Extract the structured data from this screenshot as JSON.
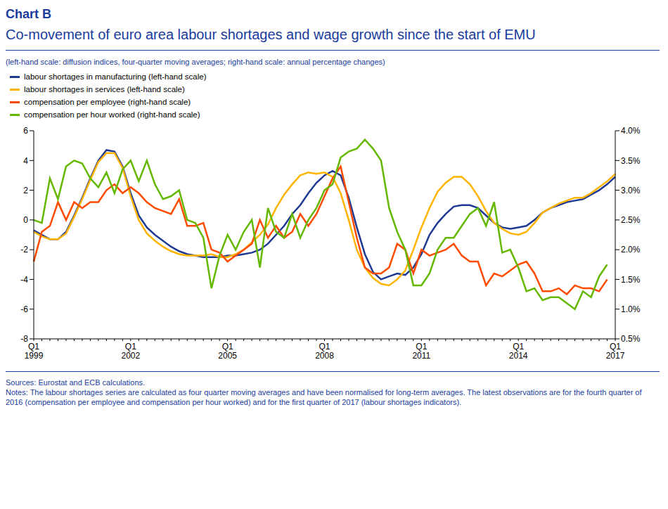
{
  "chart_data": {
    "type": "line",
    "title": "Chart B",
    "subtitle": "Co-movement of euro area labour shortages and wage growth since the start of EMU",
    "units_note": "(left-hand scale: diffusion indices, four-quarter moving averages; right-hand scale: annual percentage changes)",
    "sources": "Sources: Eurostat and ECB calculations.",
    "notes": "Notes: The labour shortages series are calculated as four quarter moving averages and have been normalised for long-term averages. The latest observations are for the fourth quarter of 2016 (compensation per employee and compensation per hour worked) and for the first quarter of 2017 (labour shortages indicators).",
    "grid": false,
    "categories": [
      "Q1 1999",
      null,
      null,
      null,
      null,
      null,
      null,
      null,
      null,
      null,
      null,
      null,
      "Q1 2002",
      null,
      null,
      null,
      null,
      null,
      null,
      null,
      null,
      null,
      null,
      null,
      "Q1 2005",
      null,
      null,
      null,
      null,
      null,
      null,
      null,
      null,
      null,
      null,
      null,
      "Q1 2008",
      null,
      null,
      null,
      null,
      null,
      null,
      null,
      null,
      null,
      null,
      null,
      "Q1 2011",
      null,
      null,
      null,
      null,
      null,
      null,
      null,
      null,
      null,
      null,
      null,
      "Q1 2014",
      null,
      null,
      null,
      null,
      null,
      null,
      null,
      null,
      null,
      null,
      null,
      "Q1 2017"
    ],
    "ylim": [
      -8,
      6
    ],
    "yticks": [
      -8,
      -6,
      -4,
      -2,
      0,
      2,
      4,
      6
    ],
    "y2lim": [
      0.5,
      4.0
    ],
    "y2ticks": [
      {
        "value": 0.5,
        "label": "0.5%"
      },
      {
        "value": 1.0,
        "label": "1.0%"
      },
      {
        "value": 1.5,
        "label": "1.5%"
      },
      {
        "value": 2.0,
        "label": "2.0%"
      },
      {
        "value": 2.5,
        "label": "2.5%"
      },
      {
        "value": 3.0,
        "label": "3.0%"
      },
      {
        "value": 3.5,
        "label": "3.5%"
      },
      {
        "value": 4.0,
        "label": "4.0%"
      }
    ],
    "series": [
      {
        "name": "labour shortages in manufacturing (left-hand scale)",
        "color": "#1f3a93",
        "values": [
          -0.7,
          -1.0,
          -1.3,
          -1.3,
          -0.8,
          0.3,
          1.5,
          2.8,
          4.0,
          4.7,
          4.6,
          3.6,
          1.8,
          0.3,
          -0.5,
          -1.0,
          -1.4,
          -1.8,
          -2.1,
          -2.3,
          -2.4,
          -2.5,
          -2.5,
          -2.5,
          -2.4,
          -2.4,
          -2.3,
          -2.2,
          -2.0,
          -1.6,
          -1.0,
          -0.4,
          0.4,
          1.0,
          1.8,
          2.5,
          3.0,
          3.3,
          3.0,
          1.5,
          -0.5,
          -2.3,
          -3.5,
          -4.0,
          -3.8,
          -3.6,
          -3.7,
          -3.2,
          -2.3,
          -1.0,
          -0.2,
          0.4,
          0.9,
          1.0,
          1.0,
          0.8,
          0.3,
          -0.2,
          -0.5,
          -0.6,
          -0.5,
          -0.4,
          0.0,
          0.5,
          0.8,
          1.0,
          1.2,
          1.3,
          1.4,
          1.7,
          2.0,
          2.4,
          2.9
        ]
      },
      {
        "name": "labour shortages in services (left-hand scale)",
        "color": "#ffb400",
        "values": [
          -0.8,
          -1.1,
          -1.3,
          -1.3,
          -0.9,
          0.2,
          1.4,
          2.7,
          3.9,
          4.5,
          4.5,
          3.5,
          1.6,
          0.0,
          -0.9,
          -1.4,
          -1.8,
          -2.1,
          -2.3,
          -2.4,
          -2.4,
          -2.4,
          -2.3,
          -2.5,
          -2.5,
          -2.3,
          -2.0,
          -1.5,
          -1.0,
          -0.3,
          0.8,
          1.7,
          2.4,
          3.0,
          3.2,
          3.1,
          3.2,
          2.9,
          1.8,
          0.0,
          -2.0,
          -3.2,
          -3.9,
          -4.3,
          -4.4,
          -4.0,
          -3.4,
          -2.0,
          -0.5,
          0.8,
          1.9,
          2.5,
          2.9,
          2.9,
          2.4,
          1.6,
          0.6,
          -0.2,
          -0.6,
          -0.9,
          -1.0,
          -0.8,
          -0.2,
          0.5,
          0.8,
          1.1,
          1.3,
          1.5,
          1.5,
          1.8,
          2.2,
          2.6,
          3.1
        ]
      },
      {
        "name": "compensation per employee (right-hand scale)",
        "color": "#ff4b00",
        "axis": "y2",
        "values": [
          1.8,
          2.3,
          2.4,
          2.8,
          2.5,
          2.8,
          2.7,
          2.8,
          2.8,
          3.0,
          3.1,
          2.95,
          3.05,
          2.95,
          2.8,
          2.7,
          2.65,
          2.6,
          2.85,
          2.4,
          2.4,
          2.45,
          2.0,
          1.95,
          1.8,
          1.9,
          2.0,
          2.1,
          2.5,
          2.2,
          2.4,
          2.2,
          2.3,
          2.6,
          2.4,
          2.6,
          2.9,
          3.2,
          3.4,
          2.8,
          2.2,
          1.7,
          1.6,
          1.6,
          1.7,
          2.1,
          2.0,
          1.6,
          2.0,
          1.9,
          1.95,
          2.0,
          2.1,
          1.9,
          1.8,
          1.8,
          1.4,
          1.6,
          1.55,
          1.65,
          1.75,
          1.8,
          1.6,
          1.3,
          1.3,
          1.35,
          1.25,
          1.4,
          1.35,
          1.35,
          1.3,
          1.5,
          null
        ]
      },
      {
        "name": "compensation per hour worked (right-hand scale)",
        "color": "#65b800",
        "axis": "y2",
        "values": [
          2.5,
          2.45,
          3.2,
          2.85,
          3.4,
          3.5,
          3.45,
          3.2,
          3.05,
          3.3,
          2.95,
          3.35,
          3.5,
          3.15,
          3.5,
          3.1,
          2.85,
          2.9,
          3.0,
          2.5,
          2.45,
          2.2,
          1.35,
          1.9,
          2.25,
          2.0,
          2.3,
          2.5,
          1.7,
          2.7,
          2.3,
          2.2,
          2.6,
          2.2,
          2.5,
          2.7,
          3.0,
          3.1,
          3.55,
          3.65,
          3.7,
          3.85,
          3.7,
          3.5,
          2.7,
          2.3,
          2.0,
          1.4,
          1.4,
          1.6,
          2.0,
          2.2,
          2.2,
          2.4,
          2.6,
          2.7,
          2.4,
          2.8,
          1.95,
          2.0,
          1.7,
          1.3,
          1.35,
          1.15,
          1.2,
          1.2,
          1.1,
          1.0,
          1.3,
          1.2,
          1.55,
          1.75,
          null
        ]
      }
    ]
  }
}
